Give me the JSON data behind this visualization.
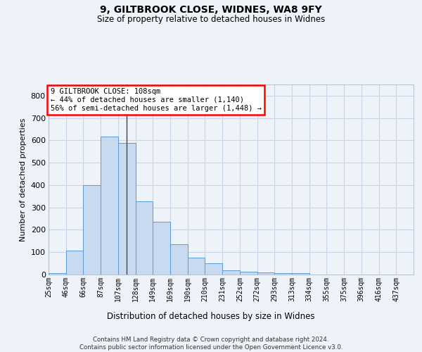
{
  "title_line1": "9, GILTBROOK CLOSE, WIDNES, WA8 9FY",
  "title_line2": "Size of property relative to detached houses in Widnes",
  "xlabel": "Distribution of detached houses by size in Widnes",
  "ylabel": "Number of detached properties",
  "footer_line1": "Contains HM Land Registry data © Crown copyright and database right 2024.",
  "footer_line2": "Contains public sector information licensed under the Open Government Licence v3.0.",
  "categories": [
    "25sqm",
    "46sqm",
    "66sqm",
    "87sqm",
    "107sqm",
    "128sqm",
    "149sqm",
    "169sqm",
    "190sqm",
    "210sqm",
    "231sqm",
    "252sqm",
    "272sqm",
    "293sqm",
    "313sqm",
    "334sqm",
    "355sqm",
    "375sqm",
    "396sqm",
    "416sqm",
    "437sqm"
  ],
  "bar_heights": [
    5,
    106,
    400,
    616,
    590,
    327,
    236,
    135,
    77,
    50,
    18,
    14,
    10,
    5,
    7,
    0,
    0,
    0,
    0,
    0,
    0
  ],
  "bar_color": "#c8daf0",
  "bar_edge_color": "#5b9bd5",
  "grid_color": "#c8d4e8",
  "annotation_line1": "9 GILTBROOK CLOSE: 108sqm",
  "annotation_line2": "← 44% of detached houses are smaller (1,140)",
  "annotation_line3": "56% of semi-detached houses are larger (1,448) →",
  "vline_color": "#444444",
  "ylim_max": 850,
  "yticks": [
    0,
    100,
    200,
    300,
    400,
    500,
    600,
    700,
    800
  ],
  "background_color": "#eef2f9"
}
